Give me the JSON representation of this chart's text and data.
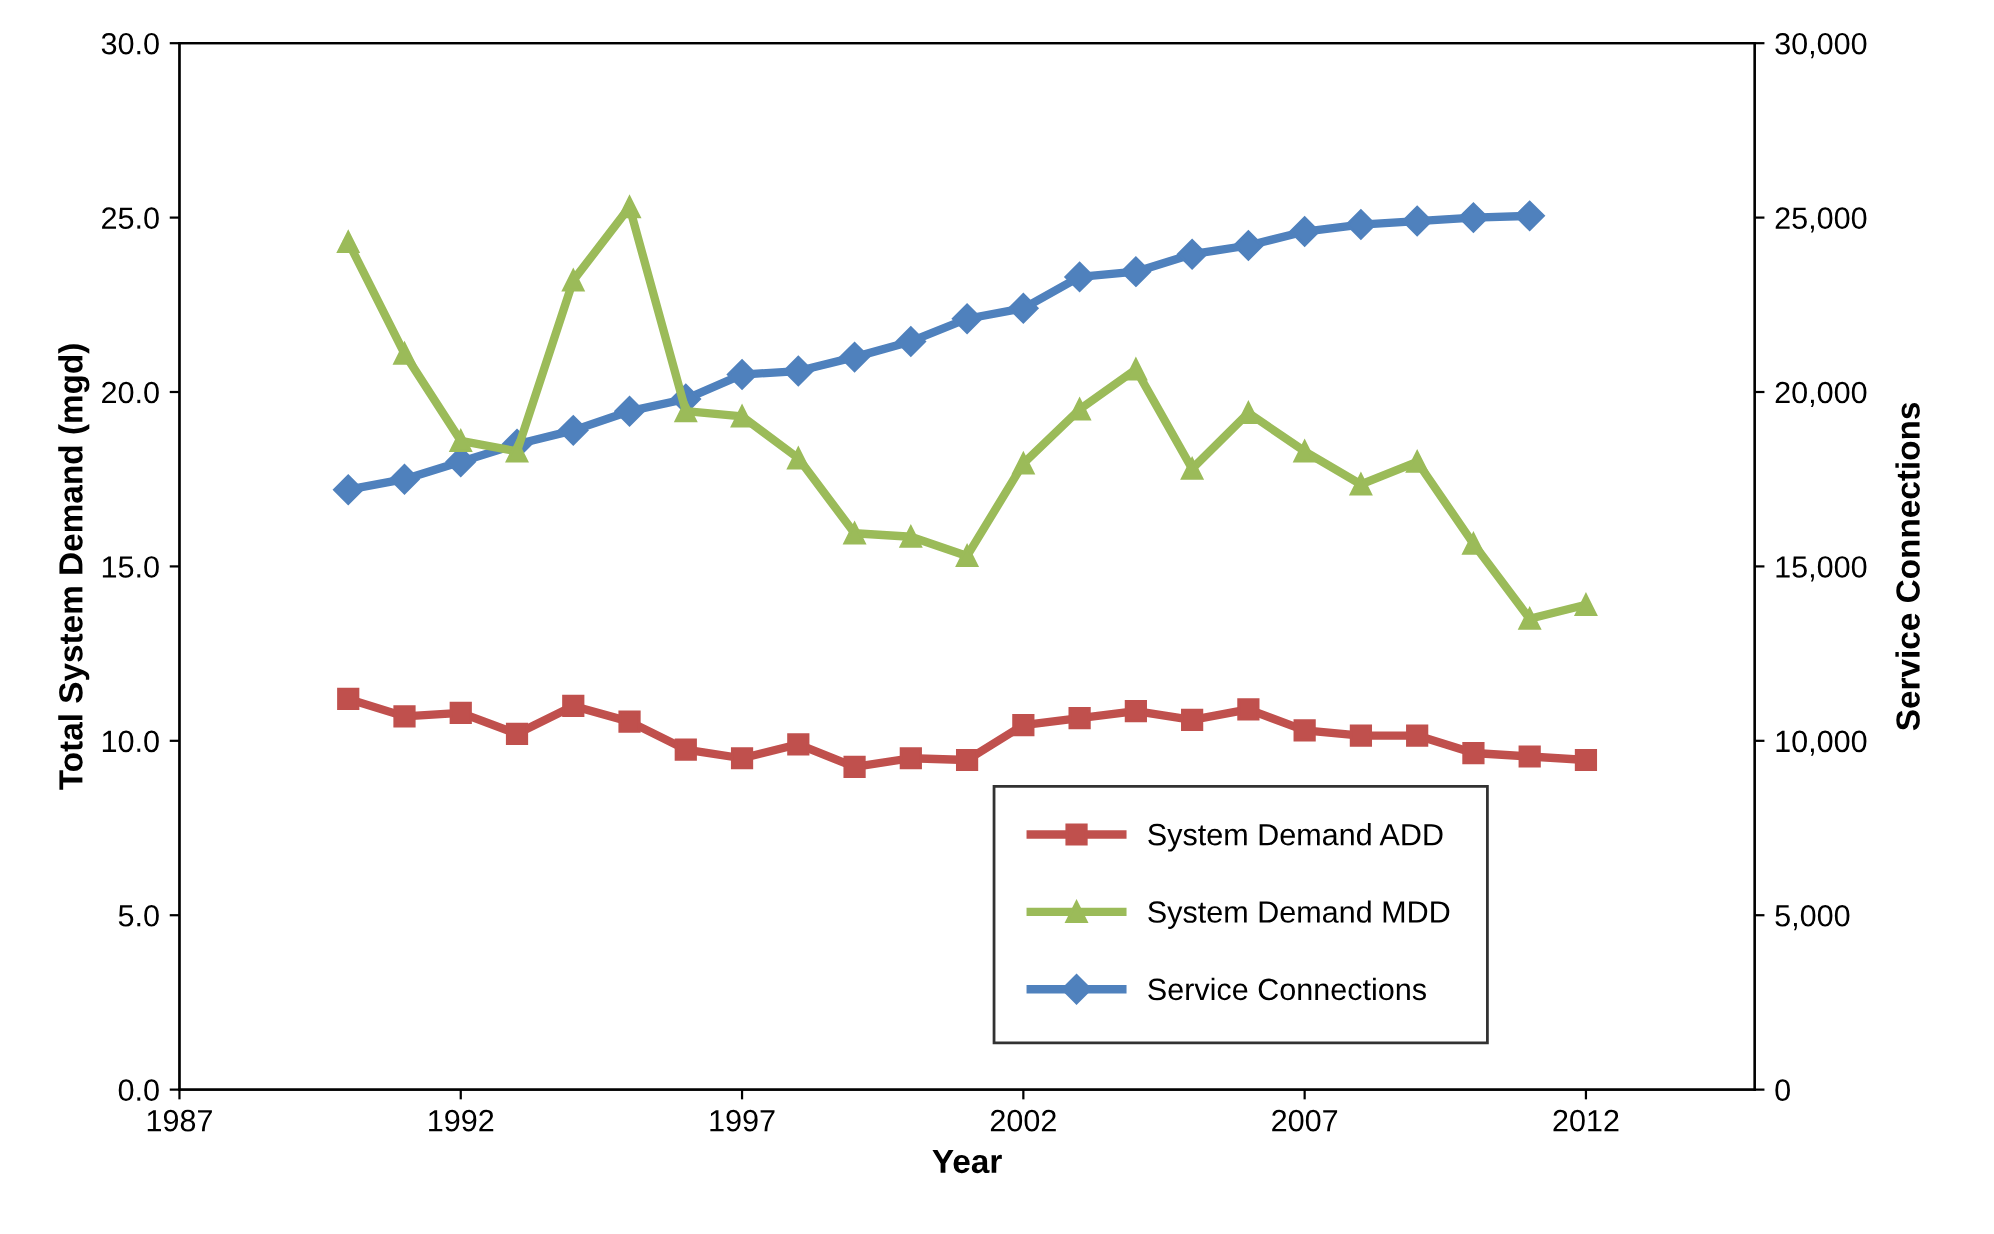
{
  "chart_data": {
    "type": "line",
    "xlabel": "Year",
    "ylabel": "Total System Demand (mgd)",
    "y2label": "Service Connections",
    "x": [
      1990,
      1991,
      1992,
      1993,
      1994,
      1995,
      1996,
      1997,
      1998,
      1999,
      2000,
      2001,
      2002,
      2003,
      2004,
      2005,
      2006,
      2007,
      2008,
      2009,
      2010,
      2011,
      2012
    ],
    "series": [
      {
        "name": "System Demand ADD",
        "color": "#c0504d",
        "marker": "square",
        "values": [
          11.2,
          10.7,
          10.8,
          10.2,
          11.0,
          10.55,
          9.75,
          9.5,
          9.9,
          9.25,
          9.5,
          9.45,
          10.45,
          10.65,
          10.85,
          10.6,
          10.9,
          10.3,
          10.15,
          10.15,
          9.65,
          9.55,
          9.45
        ]
      },
      {
        "name": "System Demand MDD",
        "color": "#9bbb59",
        "marker": "triangle",
        "values": [
          24.3,
          21.1,
          18.6,
          18.3,
          23.2,
          25.3,
          19.45,
          19.3,
          18.1,
          15.95,
          15.85,
          15.3,
          17.95,
          19.5,
          20.65,
          17.8,
          19.4,
          18.3,
          17.35,
          18.0,
          15.65,
          13.5,
          13.9
        ]
      },
      {
        "name": "Service Connections",
        "color": "#4f81bd",
        "marker": "diamond",
        "axis": "y2",
        "x": [
          1990,
          1991,
          1992,
          1993,
          1994,
          1995,
          1996,
          1997,
          1998,
          1999,
          2000,
          2001,
          2002,
          2003,
          2004,
          2005,
          2006,
          2007,
          2008,
          2009,
          2010,
          2011
        ],
        "values": [
          17200,
          17500,
          18000,
          18500,
          18900,
          19450,
          19800,
          20500,
          20600,
          21000,
          21450,
          22100,
          22400,
          23300,
          23450,
          23950,
          24200,
          24600,
          24800,
          24900,
          25000,
          25050
        ]
      }
    ],
    "xlim": [
      1987,
      2015
    ],
    "xticks": [
      1987,
      1992,
      1997,
      2002,
      2007,
      2012
    ],
    "ylim": [
      0,
      30
    ],
    "yticks": [
      {
        "value": 0,
        "label": "0.0"
      },
      {
        "value": 5,
        "label": "5.0"
      },
      {
        "value": 10,
        "label": "10.0"
      },
      {
        "value": 15,
        "label": "15.0"
      },
      {
        "value": 20,
        "label": "20.0"
      },
      {
        "value": 25,
        "label": "25.0"
      },
      {
        "value": 30,
        "label": "30.0"
      }
    ],
    "y2lim": [
      0,
      30000
    ],
    "y2ticks": [
      0,
      {
        "value": 5000,
        "label": "5,000"
      },
      {
        "value": 10000,
        "label": "10,000"
      },
      {
        "value": 15000,
        "label": "15,000"
      },
      {
        "value": 20000,
        "label": "20,000"
      },
      {
        "value": 25000,
        "label": "25,000"
      },
      {
        "value": 30000,
        "label": "30,000"
      }
    ],
    "grid": false,
    "legend": "bottom right",
    "line_style": "solid"
  }
}
